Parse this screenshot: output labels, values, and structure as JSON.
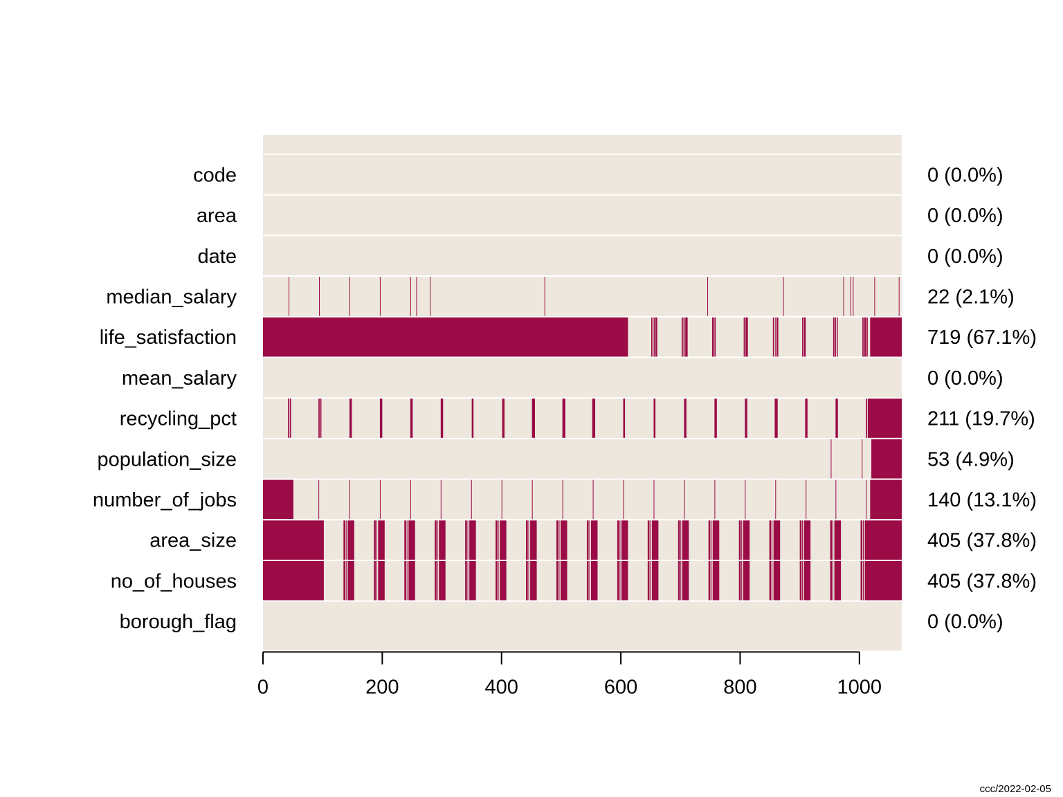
{
  "chart_data": {
    "type": "heatmap",
    "title": "",
    "xlabel": "",
    "ylabel": "",
    "n_rows": 1071,
    "xlim": [
      0,
      1071
    ],
    "x_ticks": [
      0,
      200,
      400,
      600,
      800,
      1000
    ],
    "x_tick_labels": [
      "0",
      "200",
      "400",
      "600",
      "800",
      "1000"
    ],
    "colors": {
      "missing": "#9b0b46",
      "present": "#ede7dd",
      "separator": "#ffffff"
    },
    "variables": [
      {
        "name": "code",
        "summary": "0 (0.0%)",
        "missing_count": 0,
        "missing_pct": 0.0,
        "missing_ranges": []
      },
      {
        "name": "area",
        "summary": "0 (0.0%)",
        "missing_count": 0,
        "missing_pct": 0.0,
        "missing_ranges": []
      },
      {
        "name": "date",
        "summary": "0 (0.0%)",
        "missing_count": 0,
        "missing_pct": 0.0,
        "missing_ranges": []
      },
      {
        "name": "median_salary",
        "summary": "22 (2.1%)",
        "missing_count": 22,
        "missing_pct": 2.1,
        "missing_ranges": [
          [
            43,
            44
          ],
          [
            94,
            95
          ],
          [
            145,
            146
          ],
          [
            196,
            197
          ],
          [
            247,
            248
          ],
          [
            257,
            258
          ],
          [
            280,
            281
          ],
          [
            472,
            473
          ],
          [
            745,
            746
          ],
          [
            872,
            873
          ],
          [
            973,
            974
          ],
          [
            985,
            986
          ],
          [
            989,
            990
          ],
          [
            1025,
            1026
          ],
          [
            1066,
            1067
          ]
        ]
      },
      {
        "name": "life_satisfaction",
        "summary": "719 (67.1%)",
        "missing_count": 719,
        "missing_pct": 67.1,
        "missing_ranges": [
          [
            0,
            612
          ],
          [
            651,
            653
          ],
          [
            655,
            657
          ],
          [
            658,
            661
          ],
          [
            702,
            704
          ],
          [
            705,
            707
          ],
          [
            708,
            712
          ],
          [
            753,
            756
          ],
          [
            757,
            759
          ],
          [
            806,
            808
          ],
          [
            809,
            813
          ],
          [
            855,
            857
          ],
          [
            859,
            861
          ],
          [
            862,
            864
          ],
          [
            904,
            906
          ],
          [
            907,
            910
          ],
          [
            956,
            958
          ],
          [
            959,
            961
          ],
          [
            963,
            964
          ],
          [
            1005,
            1007
          ],
          [
            1008,
            1011
          ],
          [
            1012,
            1014
          ],
          [
            1018,
            1071
          ]
        ]
      },
      {
        "name": "mean_salary",
        "summary": "0 (0.0%)",
        "missing_count": 0,
        "missing_pct": 0.0,
        "missing_ranges": []
      },
      {
        "name": "recycling_pct",
        "summary": "211 (19.7%)",
        "missing_count": 211,
        "missing_pct": 19.7,
        "missing_ranges": [
          [
            42,
            44
          ],
          [
            45,
            47
          ],
          [
            93,
            95
          ],
          [
            96,
            98
          ],
          [
            145,
            149
          ],
          [
            196,
            200
          ],
          [
            247,
            251
          ],
          [
            298,
            302
          ],
          [
            350,
            353
          ],
          [
            401,
            405
          ],
          [
            451,
            456
          ],
          [
            502,
            507
          ],
          [
            552,
            557
          ],
          [
            604,
            607
          ],
          [
            655,
            658
          ],
          [
            706,
            710
          ],
          [
            757,
            761
          ],
          [
            808,
            812
          ],
          [
            858,
            863
          ],
          [
            909,
            913
          ],
          [
            960,
            964
          ],
          [
            1011,
            1013
          ],
          [
            1014,
            1071
          ]
        ]
      },
      {
        "name": "population_size",
        "summary": "53 (4.9%)",
        "missing_count": 53,
        "missing_pct": 4.9,
        "missing_ranges": [
          [
            952,
            953
          ],
          [
            1004,
            1005
          ],
          [
            1020,
            1071
          ]
        ]
      },
      {
        "name": "number_of_jobs",
        "summary": "140 (13.1%)",
        "missing_count": 140,
        "missing_pct": 13.1,
        "missing_ranges": [
          [
            0,
            51
          ],
          [
            93,
            94
          ],
          [
            145,
            146
          ],
          [
            196,
            197
          ],
          [
            247,
            248
          ],
          [
            298,
            299
          ],
          [
            349,
            350
          ],
          [
            400,
            401
          ],
          [
            451,
            452
          ],
          [
            502,
            503
          ],
          [
            553,
            554
          ],
          [
            604,
            605
          ],
          [
            655,
            656
          ],
          [
            706,
            707
          ],
          [
            757,
            758
          ],
          [
            808,
            809
          ],
          [
            859,
            860
          ],
          [
            910,
            911
          ],
          [
            960,
            961
          ],
          [
            1011,
            1012
          ],
          [
            1018,
            1071
          ]
        ]
      },
      {
        "name": "area_size",
        "summary": "405 (37.8%)",
        "missing_count": 405,
        "missing_pct": 37.8,
        "missing_ranges": [
          [
            0,
            102
          ],
          [
            135,
            138
          ],
          [
            139,
            140
          ],
          [
            142,
            153
          ],
          [
            186,
            189
          ],
          [
            190,
            191
          ],
          [
            193,
            204
          ],
          [
            237,
            240
          ],
          [
            241,
            242
          ],
          [
            244,
            255
          ],
          [
            288,
            291
          ],
          [
            292,
            293
          ],
          [
            295,
            306
          ],
          [
            339,
            342
          ],
          [
            343,
            344
          ],
          [
            346,
            357
          ],
          [
            390,
            393
          ],
          [
            394,
            395
          ],
          [
            397,
            408
          ],
          [
            441,
            444
          ],
          [
            445,
            446
          ],
          [
            448,
            459
          ],
          [
            492,
            495
          ],
          [
            496,
            497
          ],
          [
            499,
            510
          ],
          [
            543,
            546
          ],
          [
            547,
            548
          ],
          [
            550,
            561
          ],
          [
            594,
            597
          ],
          [
            598,
            599
          ],
          [
            601,
            612
          ],
          [
            645,
            648
          ],
          [
            649,
            650
          ],
          [
            652,
            663
          ],
          [
            696,
            699
          ],
          [
            700,
            701
          ],
          [
            703,
            714
          ],
          [
            747,
            750
          ],
          [
            751,
            752
          ],
          [
            754,
            765
          ],
          [
            798,
            801
          ],
          [
            802,
            803
          ],
          [
            805,
            816
          ],
          [
            849,
            852
          ],
          [
            853,
            854
          ],
          [
            856,
            867
          ],
          [
            900,
            903
          ],
          [
            904,
            905
          ],
          [
            907,
            918
          ],
          [
            951,
            954
          ],
          [
            955,
            956
          ],
          [
            958,
            969
          ],
          [
            1002,
            1005
          ],
          [
            1006,
            1007
          ],
          [
            1009,
            1071
          ]
        ]
      },
      {
        "name": "no_of_houses",
        "summary": "405 (37.8%)",
        "missing_count": 405,
        "missing_pct": 37.8,
        "missing_ranges": [
          [
            0,
            102
          ],
          [
            135,
            138
          ],
          [
            139,
            140
          ],
          [
            142,
            153
          ],
          [
            186,
            189
          ],
          [
            190,
            191
          ],
          [
            193,
            204
          ],
          [
            237,
            240
          ],
          [
            241,
            242
          ],
          [
            244,
            255
          ],
          [
            288,
            291
          ],
          [
            292,
            293
          ],
          [
            295,
            306
          ],
          [
            339,
            342
          ],
          [
            343,
            344
          ],
          [
            346,
            357
          ],
          [
            390,
            393
          ],
          [
            394,
            395
          ],
          [
            397,
            408
          ],
          [
            441,
            444
          ],
          [
            445,
            446
          ],
          [
            448,
            459
          ],
          [
            492,
            495
          ],
          [
            496,
            497
          ],
          [
            499,
            510
          ],
          [
            543,
            546
          ],
          [
            547,
            548
          ],
          [
            550,
            561
          ],
          [
            594,
            597
          ],
          [
            598,
            599
          ],
          [
            601,
            612
          ],
          [
            645,
            648
          ],
          [
            649,
            650
          ],
          [
            652,
            663
          ],
          [
            696,
            699
          ],
          [
            700,
            701
          ],
          [
            703,
            714
          ],
          [
            747,
            750
          ],
          [
            751,
            752
          ],
          [
            754,
            765
          ],
          [
            798,
            801
          ],
          [
            802,
            803
          ],
          [
            805,
            816
          ],
          [
            849,
            852
          ],
          [
            853,
            854
          ],
          [
            856,
            867
          ],
          [
            900,
            903
          ],
          [
            904,
            905
          ],
          [
            907,
            918
          ],
          [
            951,
            954
          ],
          [
            955,
            956
          ],
          [
            958,
            969
          ],
          [
            1002,
            1005
          ],
          [
            1006,
            1007
          ],
          [
            1009,
            1071
          ]
        ]
      },
      {
        "name": "borough_flag",
        "summary": "0 (0.0%)",
        "missing_count": 0,
        "missing_pct": 0.0,
        "missing_ranges": []
      }
    ]
  },
  "footer": {
    "credit": "ccc/2022-02-05"
  }
}
